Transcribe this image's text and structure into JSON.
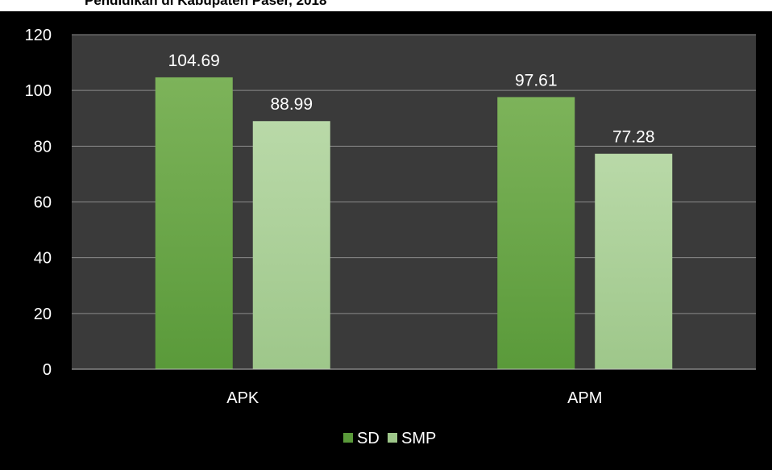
{
  "chart_data": {
    "type": "bar",
    "title": "Pendidikan di Kabupaten Paser, 2018",
    "categories": [
      "APK",
      "APM"
    ],
    "series": [
      {
        "name": "SD",
        "values": [
          104.69,
          97.61
        ],
        "color": "#5a9a3a",
        "color_light": "#7db35a"
      },
      {
        "name": "SMP",
        "values": [
          88.99,
          77.28
        ],
        "color": "#9ec78a",
        "color_light": "#b9d9a8"
      }
    ],
    "ylim": [
      0,
      120
    ],
    "yticks": [
      0,
      20,
      40,
      60,
      80,
      100,
      120
    ],
    "data_labels": [
      "104.69",
      "88.99",
      "97.61",
      "77.28"
    ],
    "grid": true,
    "legend_position": "bottom",
    "plot_background": "#3a3a3a",
    "background": "#000000"
  }
}
